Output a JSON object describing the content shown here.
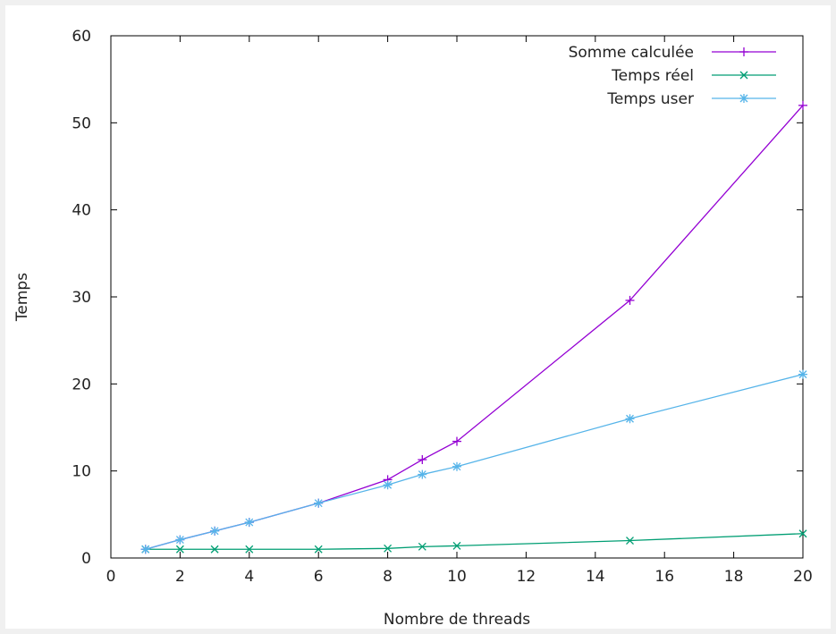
{
  "chart_data": {
    "type": "line",
    "title": "",
    "xlabel": "Nombre de threads",
    "ylabel": "Temps",
    "xlim": [
      0,
      20
    ],
    "ylim": [
      0,
      60
    ],
    "xticks": [
      0,
      2,
      4,
      6,
      8,
      10,
      12,
      14,
      16,
      18,
      20
    ],
    "yticks": [
      0,
      10,
      20,
      30,
      40,
      50,
      60
    ],
    "grid": false,
    "legend_position": "top-right",
    "series": [
      {
        "name": "Somme calculée",
        "color": "#9400d3",
        "marker": "plus",
        "x": [
          1,
          2,
          3,
          4,
          6,
          8,
          9,
          10,
          15,
          20
        ],
        "y": [
          1.0,
          2.1,
          3.1,
          4.1,
          6.3,
          9.0,
          11.3,
          13.4,
          29.6,
          52.0
        ]
      },
      {
        "name": "Temps réel",
        "color": "#009e73",
        "marker": "cross",
        "x": [
          1,
          2,
          3,
          4,
          6,
          8,
          9,
          10,
          15,
          20
        ],
        "y": [
          1.0,
          1.0,
          1.0,
          1.0,
          1.0,
          1.1,
          1.3,
          1.4,
          2.0,
          2.8
        ]
      },
      {
        "name": "Temps user",
        "color": "#56b4e9",
        "marker": "star",
        "x": [
          1,
          2,
          3,
          4,
          6,
          8,
          9,
          10,
          15,
          20
        ],
        "y": [
          1.0,
          2.1,
          3.1,
          4.1,
          6.3,
          8.4,
          9.6,
          10.5,
          16.0,
          21.1
        ]
      }
    ]
  }
}
